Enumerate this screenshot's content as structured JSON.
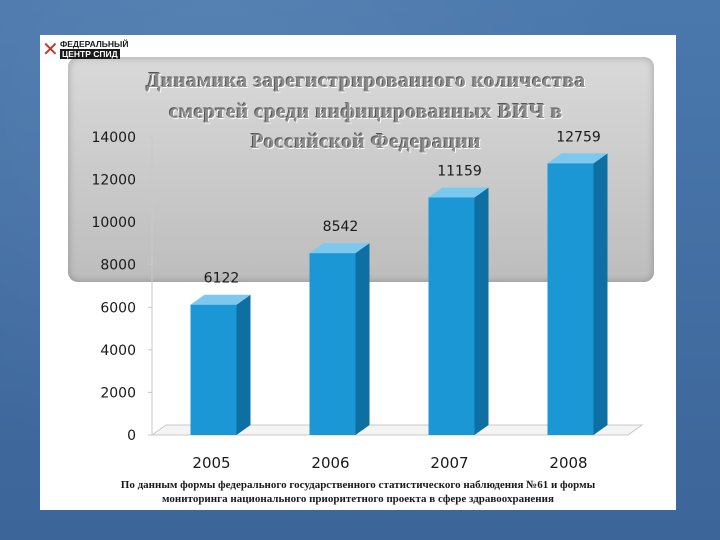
{
  "logo": {
    "line1": "ФЕДЕРАЛЬНЫЙ",
    "line2": "ЦЕНТР СПИД",
    "ribbon": "✕"
  },
  "chart_data": {
    "type": "bar",
    "title_lines": [
      "Динамика зарегистрированного количества",
      "смертей среди инфицированных ВИЧ в",
      "Российской Федерации"
    ],
    "categories": [
      "2005",
      "2006",
      "2007",
      "2008"
    ],
    "values": [
      6122,
      8542,
      11159,
      12759
    ],
    "data_labels": [
      "6122",
      "8542",
      "11159",
      "12759"
    ],
    "yticks": [
      "0",
      "2000",
      "4000",
      "6000",
      "8000",
      "10000",
      "12000",
      "14000"
    ],
    "ylim": [
      0,
      14000
    ],
    "xlabel": "",
    "ylabel": "",
    "grid": false,
    "bar_color": "#1b97d6"
  },
  "footnote": [
    "По данным формы федерального государственного статистического наблюдения №61 и формы",
    "мониторинга национального приоритетного проекта в сфере здравоохранения"
  ]
}
